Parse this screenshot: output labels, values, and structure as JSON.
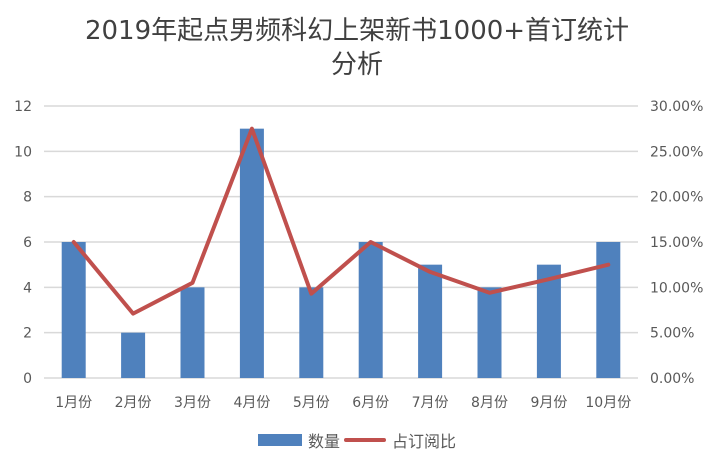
{
  "chart_data": {
    "type": "bar",
    "title": "2019年起点男频科幻上架新书1000+首订统计分析",
    "title_lines": [
      "2019年起点男频科幻上架新书1000+首订统计",
      "分析"
    ],
    "categories": [
      "1月份",
      "2月份",
      "3月份",
      "4月份",
      "5月份",
      "6月份",
      "7月份",
      "8月份",
      "9月份",
      "10月份"
    ],
    "series": [
      {
        "name": "数量",
        "type": "bar",
        "axis": "left",
        "color": "#4F81BD",
        "values": [
          6,
          2,
          4,
          11,
          4,
          6,
          5,
          4,
          5,
          6
        ]
      },
      {
        "name": "占订阅比",
        "type": "line",
        "axis": "right",
        "color": "#C0504D",
        "values": [
          0.15,
          0.071,
          0.105,
          0.275,
          0.093,
          0.15,
          0.117,
          0.094,
          0.109,
          0.125
        ]
      }
    ],
    "left_axis": {
      "ticks": [
        "0",
        "2",
        "4",
        "6",
        "8",
        "10",
        "12"
      ],
      "ylim": [
        0,
        12
      ]
    },
    "right_axis": {
      "ticks": [
        "0.00%",
        "5.00%",
        "10.00%",
        "15.00%",
        "20.00%",
        "25.00%",
        "30.00%"
      ],
      "ylim": [
        0,
        0.3
      ]
    },
    "xlabel": "",
    "ylabel": "",
    "grid": true,
    "legend_position": "bottom"
  },
  "legend": {
    "bar_label": "数量",
    "line_label": "占订阅比"
  }
}
